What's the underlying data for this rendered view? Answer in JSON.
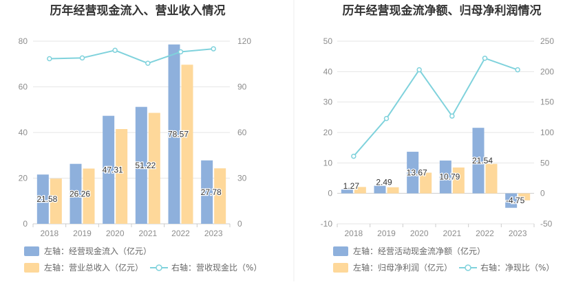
{
  "colors": {
    "bar_primary": "#8eb0dc",
    "bar_secondary": "#fed89a",
    "line": "#7fd2dc",
    "grid": "#e6e6e6",
    "axis": "#cccccc"
  },
  "chart_data": [
    {
      "type": "bar",
      "title": "历年经营现金流入、营业收入情况",
      "categories": [
        "2018",
        "2019",
        "2020",
        "2021",
        "2022",
        "2023"
      ],
      "left_axis": {
        "ylim": [
          0,
          80
        ],
        "ticks": [
          "0",
          "20",
          "40",
          "60",
          "80"
        ]
      },
      "right_axis": {
        "ylim": [
          0,
          120
        ],
        "ticks": [
          "0",
          "30",
          "60",
          "90",
          "120"
        ]
      },
      "series": [
        {
          "name": "左轴：经营现金流入（亿元）",
          "axis": "left",
          "kind": "bar",
          "values": [
            21.58,
            26.26,
            47.31,
            51.22,
            78.57,
            27.78
          ],
          "labels": [
            "21.58",
            "26.26",
            "47.31",
            "51.22",
            "78.57",
            "27.78"
          ]
        },
        {
          "name": "左轴：营业总收入（亿元）",
          "axis": "left",
          "kind": "bar",
          "values": [
            19.8,
            24.2,
            41.5,
            48.6,
            69.7,
            24.3
          ]
        },
        {
          "name": "右轴：营收现金比（%）",
          "axis": "right",
          "kind": "line",
          "values": [
            108.5,
            109.0,
            114.0,
            105.5,
            113.0,
            115.0
          ]
        }
      ]
    },
    {
      "type": "bar",
      "title": "历年经营现金流净额、归母净利润情况",
      "categories": [
        "2018",
        "2019",
        "2020",
        "2021",
        "2022",
        "2023"
      ],
      "left_axis": {
        "ylim": [
          -10,
          50
        ],
        "ticks": [
          "-10",
          "0",
          "10",
          "20",
          "30",
          "40",
          "50"
        ]
      },
      "right_axis": {
        "ylim": [
          -50,
          250
        ],
        "ticks": [
          "-50",
          "0",
          "50",
          "100",
          "150",
          "200",
          "250"
        ]
      },
      "series": [
        {
          "name": "左轴：经营活动现金流净额（亿元）",
          "axis": "left",
          "kind": "bar",
          "values": [
            1.27,
            2.49,
            13.67,
            10.79,
            21.54,
            -4.75
          ],
          "labels": [
            "1.27",
            "2.49",
            "13.67",
            "10.79",
            "21.54",
            "-4.75"
          ]
        },
        {
          "name": "左轴：归母净利润（亿元）",
          "axis": "left",
          "kind": "bar",
          "values": [
            2.1,
            2.0,
            6.8,
            8.5,
            9.7,
            -2.3
          ]
        },
        {
          "name": "右轴：净现比（%）",
          "axis": "right",
          "kind": "line",
          "values": [
            61,
            123,
            203,
            127,
            222,
            203
          ]
        }
      ]
    }
  ]
}
